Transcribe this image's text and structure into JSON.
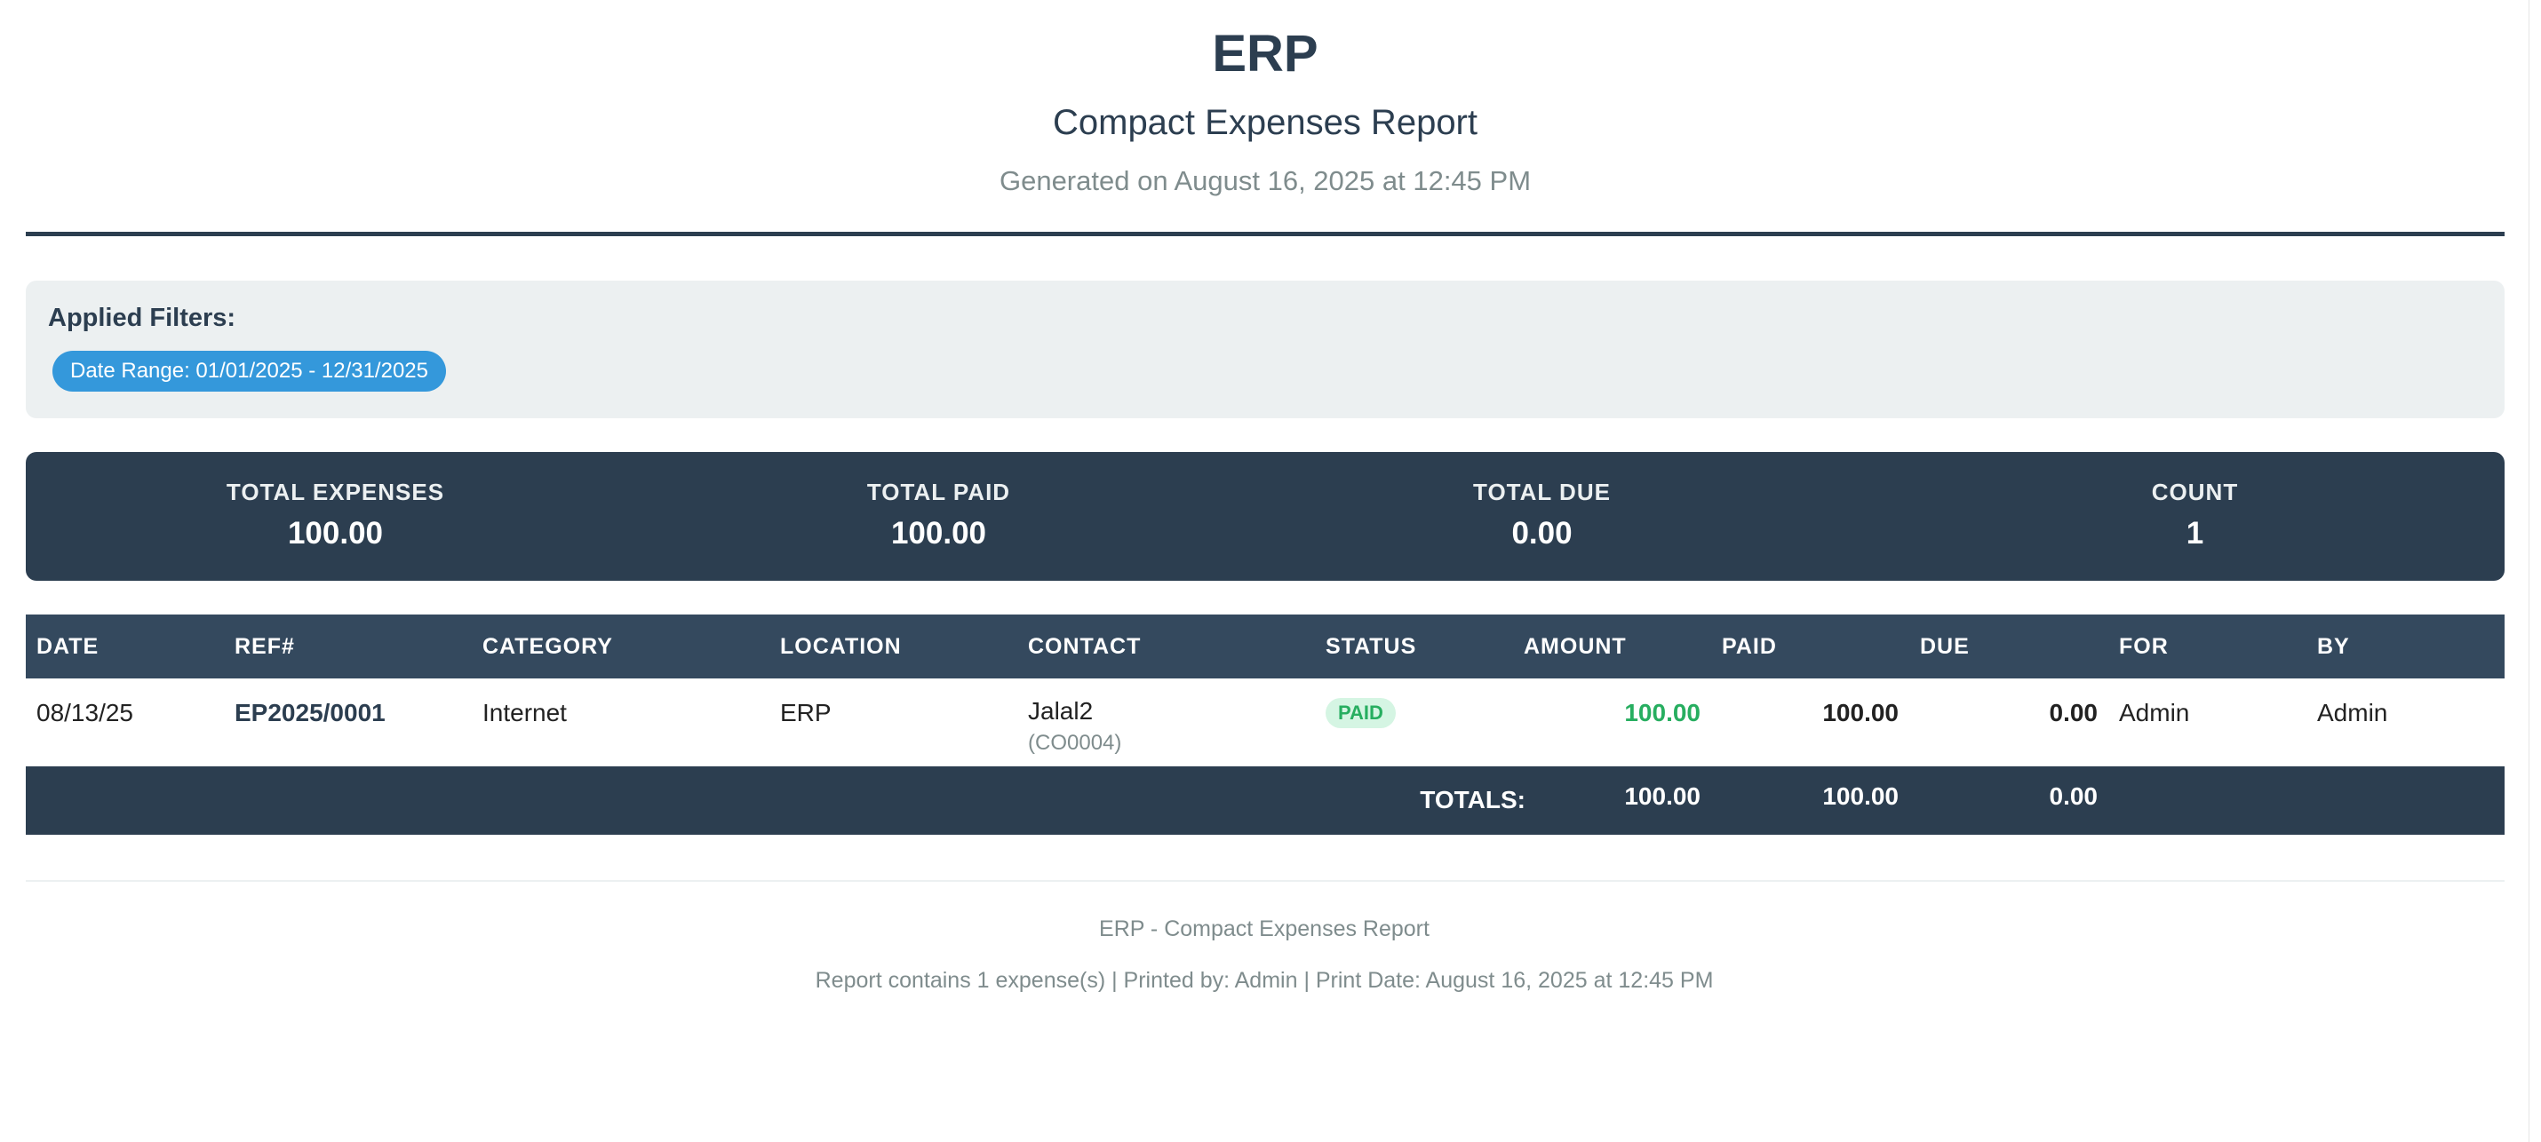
{
  "header": {
    "company": "ERP",
    "report_title": "Compact Expenses Report",
    "generated": "Generated on August 16, 2025 at 12:45 PM"
  },
  "filters": {
    "label": "Applied Filters:",
    "chips": [
      "Date Range: 01/01/2025 - 12/31/2025"
    ]
  },
  "summary": {
    "total_expenses_label": "TOTAL EXPENSES",
    "total_expenses_value": "100.00",
    "total_paid_label": "TOTAL PAID",
    "total_paid_value": "100.00",
    "total_due_label": "TOTAL DUE",
    "total_due_value": "0.00",
    "count_label": "COUNT",
    "count_value": "1"
  },
  "table": {
    "columns": [
      "DATE",
      "REF#",
      "CATEGORY",
      "LOCATION",
      "CONTACT",
      "STATUS",
      "AMOUNT",
      "PAID",
      "DUE",
      "FOR",
      "BY"
    ],
    "rows": [
      {
        "date": "08/13/25",
        "ref": "EP2025/0001",
        "category": "Internet",
        "location": "ERP",
        "contact": "Jalal2",
        "contact_code": "(CO0004)",
        "status": "PAID",
        "amount": "100.00",
        "paid": "100.00",
        "due": "0.00",
        "for": "Admin",
        "by": "Admin"
      }
    ],
    "totals": {
      "label": "TOTALS:",
      "amount": "100.00",
      "paid": "100.00",
      "due": "0.00"
    }
  },
  "footer": {
    "line1": "ERP - Compact Expenses Report",
    "line2": "Report contains 1 expense(s) | Printed by: Admin | Print Date: August 16, 2025 at 12:45 PM"
  },
  "colors": {
    "primary": "#2c3e50",
    "header_row": "#34495e",
    "accent": "#3498db",
    "success": "#27ae60",
    "muted": "#7f8c8d",
    "panel": "#ecf0f1"
  }
}
